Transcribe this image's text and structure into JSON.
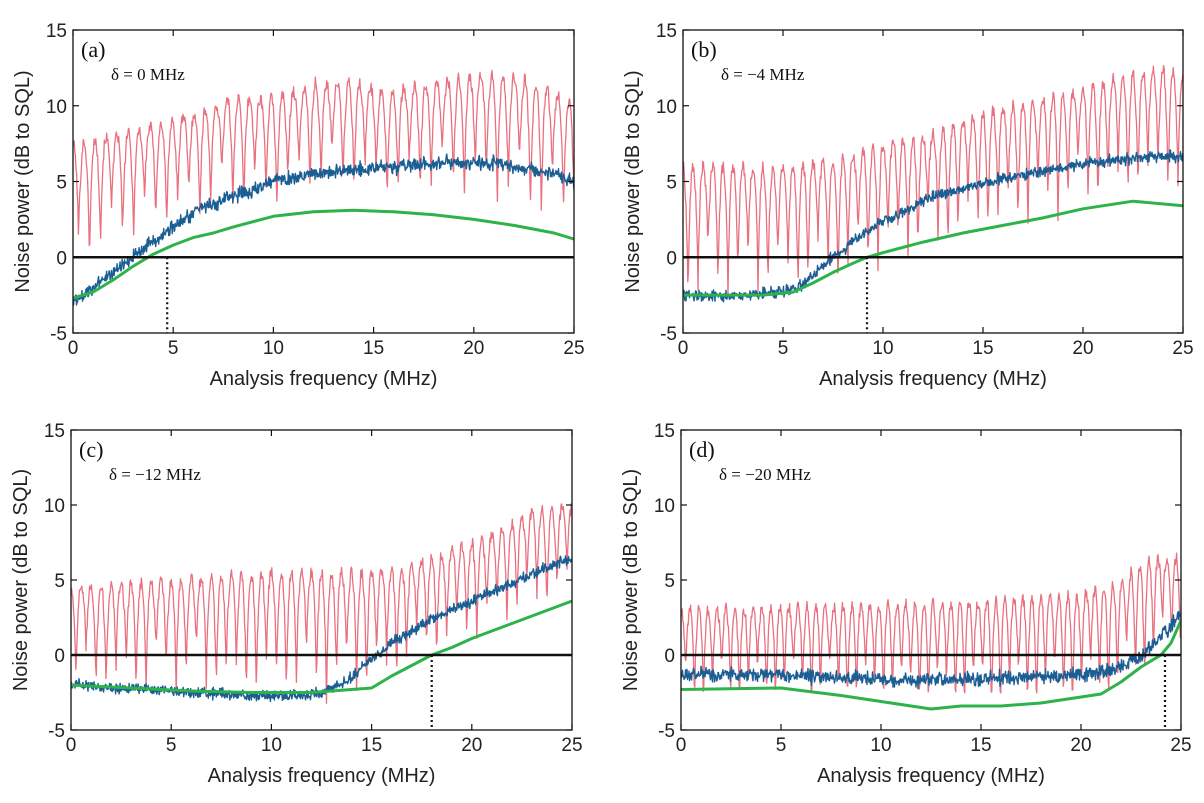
{
  "figure": {
    "xlabel": "Analysis frequency (MHz)",
    "ylabel": "Noise power (dB to SQL)"
  },
  "colors": {
    "pink": "#e9717f",
    "blue": "#1a5e93",
    "green": "#2db34a",
    "axis": "#111111"
  },
  "chart_data": [
    {
      "type": "line",
      "panel_label": "(a)",
      "annotation": "δ = 0 MHz",
      "xlabel": "Analysis frequency (MHz)",
      "ylabel": "Noise power (dB to SQL)",
      "xlim": [
        0,
        25
      ],
      "ylim": [
        -5,
        15
      ],
      "xticks": [
        0,
        5,
        10,
        15,
        20,
        25
      ],
      "yticks": [
        -5,
        0,
        5,
        10,
        15
      ],
      "crossing_x": 4.7,
      "series": [
        {
          "name": "pink",
          "kind": "oscillating",
          "x": [
            0,
            2,
            5,
            8,
            10,
            12,
            14,
            16,
            18,
            20,
            22,
            24,
            25
          ],
          "upper": [
            7.5,
            8,
            9,
            10.5,
            10.5,
            11.5,
            11.5,
            11,
            11.5,
            12,
            12,
            11,
            10
          ],
          "lower": [
            -1,
            0.5,
            2,
            3,
            3,
            4,
            4,
            3.5,
            4,
            3.5,
            3,
            2,
            2
          ],
          "period": 0.55
        },
        {
          "name": "blue",
          "kind": "noisy",
          "x": [
            0,
            0.5,
            1,
            2,
            3,
            4,
            5,
            6,
            8,
            10,
            12,
            14,
            16,
            18,
            20,
            22,
            24,
            25
          ],
          "values": [
            -3,
            -2.5,
            -2,
            -1,
            0,
            1,
            2,
            3,
            4,
            5,
            5.5,
            5.8,
            6,
            6.2,
            6.3,
            6,
            5.5,
            5
          ],
          "noise": 0.45
        },
        {
          "name": "green",
          "kind": "smooth",
          "x": [
            0,
            1,
            2,
            3,
            4,
            5,
            6,
            7,
            8,
            10,
            12,
            14,
            16,
            18,
            20,
            22,
            24,
            25
          ],
          "values": [
            -2.7,
            -2.3,
            -1.5,
            -0.6,
            0.2,
            0.8,
            1.3,
            1.6,
            2,
            2.7,
            3,
            3.1,
            3,
            2.8,
            2.5,
            2.1,
            1.6,
            1.2
          ]
        }
      ]
    },
    {
      "type": "line",
      "panel_label": "(b)",
      "annotation": "δ = −4 MHz",
      "xlabel": "Analysis frequency (MHz)",
      "ylabel": "Noise power (dB to SQL)",
      "xlim": [
        0,
        25
      ],
      "ylim": [
        -5,
        15
      ],
      "xticks": [
        0,
        5,
        10,
        15,
        20,
        25
      ],
      "yticks": [
        -5,
        0,
        5,
        10,
        15
      ],
      "crossing_x": 9.2,
      "series": [
        {
          "name": "pink",
          "kind": "oscillating",
          "x": [
            0,
            5,
            8,
            10,
            12,
            15,
            18,
            20,
            22,
            24,
            25
          ],
          "upper": [
            6,
            6,
            6.5,
            7.5,
            8,
            9.5,
            10.5,
            11,
            12,
            12.5,
            12
          ],
          "lower": [
            -3,
            -2.5,
            -2,
            -1,
            0,
            1,
            2,
            3,
            3.5,
            4,
            4
          ],
          "period": 0.5
        },
        {
          "name": "blue",
          "kind": "noisy",
          "x": [
            0,
            1,
            3,
            5,
            6,
            7,
            8,
            9,
            10,
            11,
            12,
            14,
            16,
            18,
            20,
            22,
            24,
            25
          ],
          "values": [
            -2.5,
            -2.6,
            -2.5,
            -2.3,
            -1.8,
            -0.5,
            0.5,
            1.5,
            2.4,
            3,
            3.8,
            4.5,
            5.2,
            5.7,
            6.2,
            6.5,
            6.7,
            6.5
          ],
          "noise": 0.35
        },
        {
          "name": "green",
          "kind": "smooth",
          "x": [
            0,
            2,
            4,
            5.5,
            6.5,
            7.5,
            8.5,
            9.2,
            10,
            12,
            14,
            16,
            18,
            20,
            22.5,
            25
          ],
          "values": [
            -2.5,
            -2.5,
            -2.5,
            -2.3,
            -1.7,
            -1,
            -0.4,
            0,
            0.3,
            1,
            1.6,
            2.1,
            2.6,
            3.2,
            3.7,
            3.4
          ]
        }
      ]
    },
    {
      "type": "line",
      "panel_label": "(c)",
      "annotation": "δ = −12 MHz",
      "xlabel": "Analysis frequency (MHz)",
      "ylabel": "Noise power (dB to SQL)",
      "xlim": [
        0,
        25
      ],
      "ylim": [
        -5,
        15
      ],
      "xticks": [
        0,
        5,
        10,
        15,
        20,
        25
      ],
      "yticks": [
        -5,
        0,
        5,
        10,
        15
      ],
      "crossing_x": 18,
      "series": [
        {
          "name": "pink",
          "kind": "oscillating",
          "x": [
            0,
            5,
            10,
            13,
            15,
            17,
            19,
            21,
            23,
            25
          ],
          "upper": [
            4.5,
            5,
            5.5,
            5.5,
            5.5,
            6,
            7,
            8,
            9.5,
            10
          ],
          "lower": [
            -2.5,
            -2.5,
            -3,
            -3,
            -2.5,
            -1,
            0,
            1.5,
            3,
            3.5
          ],
          "period": 0.5
        },
        {
          "name": "blue",
          "kind": "noisy",
          "x": [
            0,
            2,
            5,
            8,
            10,
            12,
            13,
            14,
            15,
            16,
            17,
            18,
            19,
            20,
            21,
            22,
            23,
            24,
            25
          ],
          "values": [
            -2,
            -2.2,
            -2.4,
            -2.6,
            -2.8,
            -2.6,
            -2.2,
            -1.5,
            -0.3,
            0.8,
            1.6,
            2.4,
            3,
            3.6,
            4.2,
            4.8,
            5.4,
            6,
            6.5
          ],
          "noise": 0.35
        },
        {
          "name": "green",
          "kind": "smooth",
          "x": [
            0,
            3,
            6,
            9,
            12,
            15,
            16,
            17,
            18,
            19,
            20,
            22,
            24,
            25
          ],
          "values": [
            -2,
            -2.2,
            -2.4,
            -2.5,
            -2.5,
            -2.2,
            -1.4,
            -0.7,
            0,
            0.5,
            1.1,
            2.1,
            3.1,
            3.6
          ]
        }
      ]
    },
    {
      "type": "line",
      "panel_label": "(d)",
      "annotation": "δ = −20 MHz",
      "xlabel": "Analysis frequency (MHz)",
      "ylabel": "Noise power (dB to SQL)",
      "xlim": [
        0,
        25
      ],
      "ylim": [
        -5,
        15
      ],
      "xticks": [
        0,
        5,
        10,
        15,
        20,
        25
      ],
      "yticks": [
        -5,
        0,
        5,
        10,
        15
      ],
      "crossing_x": 24.2,
      "series": [
        {
          "name": "pink",
          "kind": "oscillating",
          "x": [
            0,
            5,
            10,
            15,
            20,
            22,
            23,
            24,
            25
          ],
          "upper": [
            3,
            3.2,
            3.3,
            3.5,
            4,
            5,
            6,
            6.5,
            6.5
          ],
          "lower": [
            -3.5,
            -3.5,
            -3.8,
            -4,
            -4,
            -3.5,
            -2.5,
            -1,
            0
          ],
          "period": 0.45
        },
        {
          "name": "blue",
          "kind": "noisy",
          "x": [
            0,
            3,
            6,
            9,
            12,
            15,
            18,
            20,
            21,
            22,
            23,
            24,
            25
          ],
          "values": [
            -1.3,
            -1.3,
            -1.4,
            -1.6,
            -1.7,
            -1.6,
            -1.4,
            -1.3,
            -1.1,
            -0.8,
            0,
            1.2,
            2.8
          ],
          "noise": 0.45
        },
        {
          "name": "green",
          "kind": "smooth",
          "x": [
            0,
            5,
            8,
            10,
            12.5,
            14,
            16,
            18,
            21,
            22,
            23,
            24,
            24.5,
            25
          ],
          "values": [
            -2.3,
            -2.2,
            -2.7,
            -3.1,
            -3.6,
            -3.4,
            -3.4,
            -3.2,
            -2.6,
            -1.8,
            -0.8,
            0,
            0.8,
            2.3
          ]
        }
      ]
    }
  ]
}
